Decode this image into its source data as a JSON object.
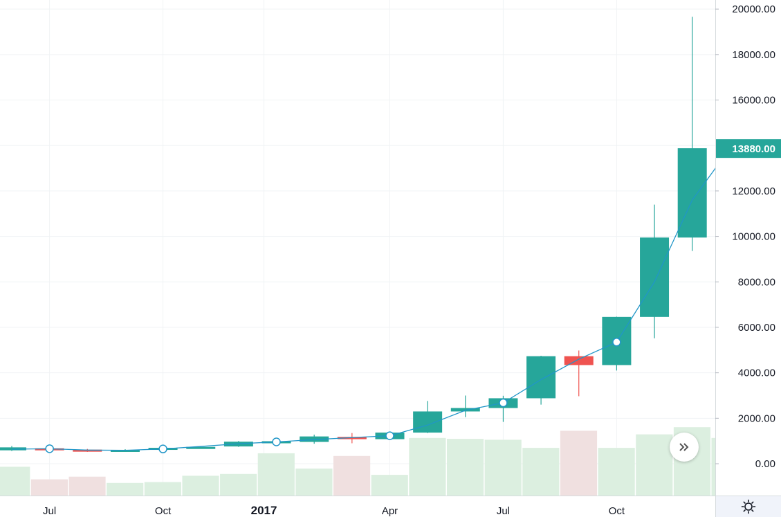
{
  "chart_data": {
    "type": "candlestick",
    "price_axis": {
      "ticks": [
        "20000.00",
        "18000.00",
        "16000.00",
        "12000.00",
        "10000.00",
        "8000.00",
        "6000.00",
        "4000.00",
        "2000.00",
        "0.00"
      ],
      "tick_values": [
        20000,
        18000,
        16000,
        12000,
        10000,
        8000,
        6000,
        4000,
        2000,
        0
      ],
      "ylim": [
        -1400,
        20400
      ]
    },
    "time_axis": {
      "labels": [
        {
          "text": "Jul",
          "slot": 1,
          "bold": false
        },
        {
          "text": "Oct",
          "slot": 4,
          "bold": false
        },
        {
          "text": "2017",
          "slot": 7,
          "bold": true
        },
        {
          "text": "Apr",
          "slot": 10,
          "bold": false
        },
        {
          "text": "Jul",
          "slot": 13,
          "bold": false
        },
        {
          "text": "Oct",
          "slot": 16,
          "bold": false
        }
      ]
    },
    "last_price_label": "13880.00",
    "last_price": 13880,
    "colors": {
      "up": "#26a69a",
      "down": "#ef5350",
      "up_volume": "#dcefe0",
      "down_volume": "#f0e0e0",
      "line": "#2196c8",
      "grid": "#f0f3f5",
      "axis_text": "#131722"
    },
    "candles": [
      {
        "open": 590,
        "high": 780,
        "low": 560,
        "close": 720,
        "volume": 0.16
      },
      {
        "open": 680,
        "high": 740,
        "low": 600,
        "close": 650,
        "volume": 0.09
      },
      {
        "open": 620,
        "high": 650,
        "low": 520,
        "close": 580,
        "volume": 0.105
      },
      {
        "open": 590,
        "high": 640,
        "low": 560,
        "close": 610,
        "volume": 0.07
      },
      {
        "open": 620,
        "high": 720,
        "low": 600,
        "close": 700,
        "volume": 0.075
      },
      {
        "open": 700,
        "high": 760,
        "low": 680,
        "close": 740,
        "volume": 0.11
      },
      {
        "open": 760,
        "high": 1000,
        "low": 740,
        "close": 970,
        "volume": 0.12
      },
      {
        "open": 970,
        "high": 1010,
        "low": 940,
        "close": 990,
        "volume": 0.235
      },
      {
        "open": 960,
        "high": 1280,
        "low": 880,
        "close": 1200,
        "volume": 0.15
      },
      {
        "open": 1180,
        "high": 1350,
        "low": 900,
        "close": 1080,
        "volume": 0.22
      },
      {
        "open": 1080,
        "high": 1400,
        "low": 1040,
        "close": 1370,
        "volume": 0.115
      },
      {
        "open": 1370,
        "high": 2760,
        "low": 1350,
        "close": 2300,
        "volume": 0.32
      },
      {
        "open": 2300,
        "high": 3000,
        "low": 2050,
        "close": 2450,
        "volume": 0.315
      },
      {
        "open": 2450,
        "high": 2990,
        "low": 1840,
        "close": 2880,
        "volume": 0.31
      },
      {
        "open": 2880,
        "high": 4750,
        "low": 2600,
        "close": 4730,
        "volume": 0.265
      },
      {
        "open": 4730,
        "high": 4980,
        "low": 2970,
        "close": 4340,
        "volume": 0.36
      },
      {
        "open": 4340,
        "high": 6470,
        "low": 4100,
        "close": 6460,
        "volume": 0.265
      },
      {
        "open": 6460,
        "high": 11400,
        "low": 5520,
        "close": 9950,
        "volume": 0.34
      },
      {
        "open": 9950,
        "high": 19660,
        "low": 9360,
        "close": 13880,
        "volume": 0.38
      },
      {
        "open": 13880,
        "high": 13880,
        "low": 13880,
        "close": 13880,
        "volume": 0.32
      }
    ],
    "line_series": [
      640,
      660,
      600,
      590,
      650,
      760,
      880,
      960,
      1060,
      1150,
      1230,
      1700,
      2350,
      2680,
      3700,
      4600,
      5350,
      8000,
      11600,
      13880
    ],
    "marker_slots": [
      1,
      4,
      7,
      10,
      13,
      16
    ]
  },
  "icons": {
    "scroll_right": "double-chevron-right-icon",
    "settings": "gear-icon"
  }
}
